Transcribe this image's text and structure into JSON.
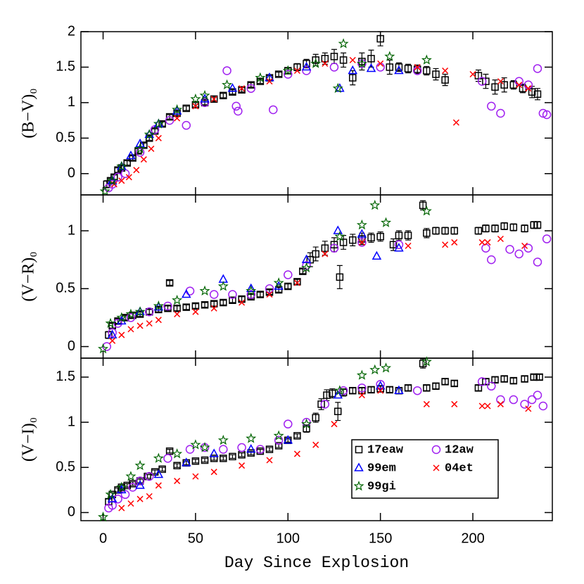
{
  "chart_data": [
    {
      "type": "scatter",
      "y_label": "(B−V)₀",
      "xlim": [
        -12,
        243
      ],
      "ylim": [
        -0.3,
        2
      ],
      "xticks": [
        0,
        50,
        100,
        150,
        200
      ],
      "yticks": [
        0,
        0.5,
        1,
        1.5,
        2
      ],
      "series": [
        {
          "marker": "square",
          "color": "#000000",
          "x": [
            2,
            4,
            6,
            8,
            10,
            13,
            16,
            19,
            22,
            25,
            28,
            32,
            36,
            40,
            45,
            50,
            55,
            60,
            65,
            70,
            75,
            80,
            85,
            90,
            95,
            100,
            105,
            110,
            115,
            120,
            125,
            130,
            135,
            140,
            145,
            150,
            155,
            160,
            165,
            170,
            175,
            180,
            185,
            203,
            207,
            212,
            217,
            222,
            227,
            232,
            235
          ],
          "values": [
            -0.15,
            -0.1,
            -0.05,
            0.05,
            0.08,
            0.15,
            0.22,
            0.32,
            0.4,
            0.5,
            0.6,
            0.7,
            0.8,
            0.85,
            0.92,
            0.97,
            1.0,
            1.05,
            1.1,
            1.15,
            1.18,
            1.25,
            1.3,
            1.35,
            1.4,
            1.45,
            1.5,
            1.55,
            1.6,
            1.62,
            1.65,
            1.6,
            1.35,
            1.58,
            1.62,
            1.9,
            1.5,
            1.5,
            1.48,
            1.47,
            1.45,
            1.4,
            1.32,
            1.38,
            1.3,
            1.22,
            1.25,
            1.25,
            1.2,
            1.15,
            1.12
          ],
          "errors": [
            0.05,
            0.03,
            0.03,
            0.03,
            0.03,
            0.03,
            0.03,
            0.03,
            0.03,
            0.03,
            0.03,
            0.03,
            0.03,
            0.03,
            0.03,
            0.03,
            0.03,
            0.03,
            0.03,
            0.03,
            0.03,
            0.03,
            0.03,
            0.03,
            0.03,
            0.04,
            0.05,
            0.06,
            0.08,
            0.08,
            0.1,
            0.1,
            0.1,
            0.12,
            0.12,
            0.1,
            0.1,
            0.06,
            0.06,
            0.06,
            0.06,
            0.08,
            0.08,
            0.08,
            0.1,
            0.1,
            0.1,
            0.06,
            0.06,
            0.08,
            0.08
          ]
        },
        {
          "marker": "circle",
          "color": "#a020f0",
          "x": [
            3,
            5,
            8,
            12,
            20,
            28,
            36,
            45,
            55,
            67,
            72,
            73,
            80,
            92,
            100,
            110,
            125,
            140,
            150,
            170,
            205,
            210,
            215,
            225,
            230,
            235,
            238,
            240
          ],
          "values": [
            -0.2,
            -0.15,
            -0.05,
            0.0,
            0.3,
            0.62,
            0.75,
            0.68,
            1.0,
            1.45,
            0.95,
            0.88,
            1.2,
            0.9,
            1.4,
            1.45,
            1.5,
            1.55,
            1.5,
            1.45,
            1.3,
            0.95,
            0.85,
            1.3,
            1.25,
            1.48,
            0.85,
            0.83
          ]
        },
        {
          "marker": "triangle",
          "color": "#0000ff",
          "x": [
            5,
            10,
            15,
            20,
            25,
            30,
            40,
            55,
            70,
            90,
            110,
            128,
            135,
            145,
            160
          ],
          "values": [
            -0.1,
            0.1,
            0.25,
            0.42,
            0.55,
            0.7,
            0.88,
            1.05,
            1.2,
            1.35,
            1.5,
            1.2,
            1.45,
            1.48,
            1.45
          ]
        },
        {
          "marker": "cross",
          "color": "#ff0000",
          "x": [
            6,
            10,
            14,
            18,
            22,
            26,
            30,
            40,
            50,
            60,
            75,
            90,
            105,
            120,
            135,
            150,
            170,
            185,
            191,
            200,
            215,
            225,
            230
          ],
          "values": [
            -0.15,
            -0.1,
            -0.05,
            0.05,
            0.2,
            0.35,
            0.5,
            0.78,
            0.95,
            1.05,
            1.2,
            1.3,
            1.45,
            1.55,
            1.6,
            1.55,
            1.5,
            1.45,
            0.72,
            1.4,
            1.3,
            1.25,
            1.2
          ]
        },
        {
          "marker": "star",
          "color": "#006400",
          "x": [
            1,
            5,
            10,
            20,
            25,
            30,
            40,
            50,
            55,
            67,
            85,
            100,
            115,
            127,
            130,
            140,
            155,
            175
          ],
          "values": [
            -0.25,
            -0.1,
            0.1,
            0.35,
            0.55,
            0.7,
            0.9,
            1.05,
            1.1,
            1.25,
            1.35,
            1.45,
            1.55,
            1.2,
            1.83,
            1.55,
            1.65,
            1.6
          ]
        }
      ]
    },
    {
      "type": "scatter",
      "y_label": "(V−R)₀",
      "xlim": [
        -12,
        243
      ],
      "ylim": [
        -0.1,
        1.31
      ],
      "xticks": [
        0,
        50,
        100,
        150,
        200
      ],
      "yticks": [
        0,
        0.5,
        1
      ],
      "series": [
        {
          "marker": "square",
          "color": "#000000",
          "x": [
            3,
            5,
            8,
            12,
            16,
            20,
            25,
            30,
            35,
            36,
            40,
            45,
            50,
            55,
            60,
            65,
            70,
            75,
            80,
            85,
            90,
            95,
            100,
            105,
            108,
            112,
            115,
            120,
            125,
            128,
            130,
            135,
            140,
            145,
            150,
            157,
            160,
            165,
            173,
            175,
            180,
            185,
            190,
            203,
            207,
            212,
            217,
            222,
            228,
            233,
            235
          ],
          "values": [
            0.1,
            0.18,
            0.22,
            0.25,
            0.27,
            0.28,
            0.3,
            0.32,
            0.33,
            0.55,
            0.33,
            0.34,
            0.35,
            0.36,
            0.37,
            0.38,
            0.4,
            0.41,
            0.43,
            0.45,
            0.47,
            0.49,
            0.52,
            0.56,
            0.65,
            0.75,
            0.8,
            0.85,
            0.88,
            0.6,
            0.9,
            0.92,
            0.93,
            0.94,
            0.95,
            0.88,
            0.96,
            0.96,
            1.22,
            0.98,
            1.0,
            1.0,
            1.0,
            1.0,
            1.02,
            1.02,
            1.04,
            1.03,
            1.02,
            1.05,
            1.05
          ],
          "errors": [
            0.03,
            0.02,
            0.02,
            0.02,
            0.02,
            0.02,
            0.02,
            0.02,
            0.02,
            0.02,
            0.02,
            0.02,
            0.02,
            0.02,
            0.02,
            0.02,
            0.02,
            0.02,
            0.02,
            0.02,
            0.02,
            0.02,
            0.02,
            0.02,
            0.02,
            0.06,
            0.06,
            0.06,
            0.06,
            0.1,
            0.06,
            0.05,
            0.05,
            0.04,
            0.04,
            0.05,
            0.04,
            0.04,
            0.04,
            0.04,
            0.03,
            0.03,
            0.03,
            0.03,
            0.03,
            0.03,
            0.03,
            0.03,
            0.03,
            0.03,
            0.03
          ]
        },
        {
          "marker": "circle",
          "color": "#a020f0",
          "x": [
            2,
            5,
            8,
            15,
            25,
            35,
            47,
            60,
            70,
            80,
            90,
            100,
            110,
            125,
            140,
            160,
            207,
            210,
            220,
            225,
            230,
            235,
            240
          ],
          "values": [
            0.0,
            0.12,
            0.2,
            0.25,
            0.3,
            0.35,
            0.48,
            0.45,
            0.45,
            0.45,
            0.5,
            0.62,
            0.7,
            0.85,
            0.9,
            0.88,
            0.85,
            0.75,
            0.84,
            0.8,
            0.85,
            0.73,
            0.93
          ]
        },
        {
          "marker": "triangle",
          "color": "#0000ff",
          "x": [
            5,
            10,
            20,
            30,
            45,
            65,
            80,
            95,
            110,
            127,
            140,
            148,
            160
          ],
          "values": [
            0.1,
            0.22,
            0.3,
            0.34,
            0.45,
            0.58,
            0.5,
            0.52,
            0.75,
            1.0,
            0.97,
            0.78,
            0.85
          ]
        },
        {
          "marker": "cross",
          "color": "#ff0000",
          "x": [
            5,
            10,
            15,
            20,
            25,
            30,
            40,
            50,
            60,
            75,
            90,
            105,
            120,
            140,
            165,
            185,
            190,
            205,
            208,
            215,
            228
          ],
          "values": [
            0.05,
            0.1,
            0.15,
            0.18,
            0.2,
            0.23,
            0.28,
            0.3,
            0.33,
            0.38,
            0.45,
            0.55,
            0.8,
            0.9,
            0.87,
            0.88,
            0.9,
            0.9,
            0.9,
            0.93,
            0.87
          ]
        },
        {
          "marker": "star",
          "color": "#006400",
          "x": [
            0,
            4,
            10,
            15,
            20,
            30,
            40,
            55,
            65,
            80,
            95,
            110,
            128,
            140,
            147,
            153,
            175
          ],
          "values": [
            -0.02,
            0.2,
            0.25,
            0.28,
            0.3,
            0.35,
            0.4,
            0.48,
            0.52,
            0.48,
            0.55,
            0.68,
            0.95,
            1.05,
            1.22,
            1.07,
            1.17
          ]
        }
      ]
    },
    {
      "type": "scatter",
      "y_label": "(V−I)₀",
      "x_label": "Day Since Explosion",
      "xlim": [
        -12,
        243
      ],
      "ylim": [
        -0.09,
        1.71
      ],
      "xticks": [
        0,
        50,
        100,
        150,
        200
      ],
      "yticks": [
        0,
        0.5,
        1,
        1.5
      ],
      "legend": "lower right",
      "series": [
        {
          "name": "17eaw",
          "marker": "square",
          "color": "#000000",
          "x": [
            3,
            5,
            8,
            10,
            13,
            16,
            20,
            24,
            28,
            32,
            36,
            40,
            45,
            50,
            55,
            60,
            65,
            70,
            75,
            80,
            85,
            90,
            95,
            100,
            105,
            110,
            115,
            118,
            121,
            124,
            127,
            130,
            135,
            140,
            145,
            150,
            155,
            160,
            165,
            173,
            175,
            180,
            185,
            190,
            203,
            207,
            212,
            217,
            222,
            228,
            233,
            236
          ],
          "values": [
            0.12,
            0.2,
            0.25,
            0.28,
            0.3,
            0.32,
            0.35,
            0.4,
            0.45,
            0.48,
            0.68,
            0.52,
            0.55,
            0.57,
            0.58,
            0.6,
            0.6,
            0.62,
            0.64,
            0.66,
            0.68,
            0.7,
            0.74,
            0.8,
            0.85,
            0.93,
            1.05,
            1.2,
            1.3,
            1.32,
            1.12,
            1.33,
            1.35,
            1.35,
            1.36,
            1.37,
            1.36,
            1.35,
            1.38,
            1.65,
            1.38,
            1.4,
            1.45,
            1.43,
            1.38,
            1.45,
            1.47,
            1.48,
            1.46,
            1.48,
            1.5,
            1.5
          ],
          "errors": [
            0.03,
            0.02,
            0.02,
            0.02,
            0.02,
            0.02,
            0.02,
            0.02,
            0.02,
            0.02,
            0.02,
            0.02,
            0.02,
            0.02,
            0.02,
            0.02,
            0.02,
            0.02,
            0.02,
            0.02,
            0.02,
            0.02,
            0.02,
            0.02,
            0.02,
            0.04,
            0.05,
            0.06,
            0.06,
            0.05,
            0.1,
            0.04,
            0.03,
            0.03,
            0.03,
            0.03,
            0.03,
            0.03,
            0.03,
            0.05,
            0.03,
            0.03,
            0.03,
            0.03,
            0.03,
            0.03,
            0.03,
            0.03,
            0.03,
            0.03,
            0.03,
            0.03
          ]
        },
        {
          "name": "12aw",
          "marker": "circle",
          "color": "#a020f0",
          "x": [
            3,
            5,
            8,
            12,
            16,
            20,
            25,
            35,
            47,
            55,
            65,
            75,
            85,
            95,
            100,
            110,
            120,
            130,
            140,
            150,
            170,
            205,
            210,
            215,
            222,
            228,
            232,
            235,
            238
          ],
          "values": [
            0.05,
            0.08,
            0.15,
            0.2,
            0.28,
            0.35,
            0.4,
            0.6,
            0.7,
            0.72,
            0.7,
            0.72,
            0.7,
            0.8,
            0.98,
            1.0,
            1.2,
            1.35,
            1.38,
            1.42,
            1.35,
            1.45,
            1.4,
            1.25,
            1.25,
            1.2,
            1.25,
            1.3,
            1.18
          ]
        },
        {
          "name": "99em",
          "marker": "triangle",
          "color": "#0000ff",
          "x": [
            5,
            10,
            20,
            30,
            45,
            60,
            80,
            100,
            127,
            150,
            160
          ],
          "values": [
            0.15,
            0.25,
            0.3,
            0.42,
            0.55,
            0.65,
            0.7,
            0.8,
            1.3,
            1.4,
            1.35
          ]
        },
        {
          "name": "04et",
          "marker": "cross",
          "color": "#ff0000",
          "x": [
            10,
            15,
            20,
            25,
            30,
            40,
            50,
            60,
            75,
            90,
            105,
            115,
            125,
            140,
            150,
            175,
            190,
            205,
            208,
            215,
            230
          ],
          "values": [
            0.05,
            0.1,
            0.15,
            0.18,
            0.3,
            0.35,
            0.4,
            0.45,
            0.52,
            0.58,
            0.65,
            0.75,
            0.98,
            1.3,
            1.35,
            1.2,
            1.2,
            1.18,
            1.18,
            1.2,
            1.15
          ]
        },
        {
          "name": "99gi",
          "marker": "star",
          "color": "#006400",
          "x": [
            0,
            4,
            10,
            15,
            20,
            30,
            40,
            50,
            55,
            65,
            80,
            95,
            110,
            128,
            140,
            147,
            153,
            175
          ],
          "values": [
            -0.05,
            0.2,
            0.28,
            0.4,
            0.52,
            0.6,
            0.65,
            0.75,
            0.72,
            0.8,
            0.82,
            0.85,
            0.98,
            1.35,
            1.52,
            1.58,
            1.6,
            1.67
          ]
        }
      ]
    }
  ]
}
